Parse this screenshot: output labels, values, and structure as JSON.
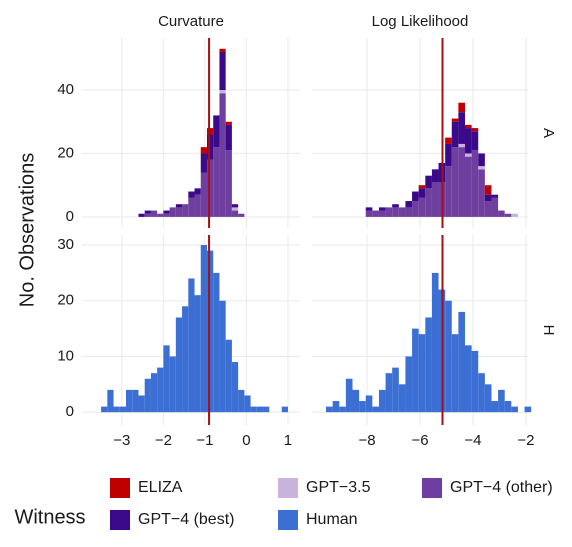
{
  "figure": {
    "ylabel": "No. Observations",
    "legend_title": "Witness"
  },
  "chart_data": [
    {
      "type": "histogram",
      "title": "Curvature",
      "bins": [
        -3.5,
        -3.35,
        -3.2,
        -3.05,
        -2.9,
        -2.75,
        -2.6,
        -2.45,
        -2.3,
        -2.15,
        -2,
        -1.85,
        -1.7,
        -1.55,
        -1.4,
        -1.25,
        -1.1,
        -0.95,
        -0.8,
        -0.65,
        -0.5,
        -0.35,
        -0.2,
        -0.05,
        0.1,
        0.25,
        0.4,
        0.55,
        0.7,
        0.85,
        1.0
      ],
      "series": [
        {
          "name": "ELIZA",
          "color": "#c00000",
          "values": [
            0,
            0,
            0,
            0,
            0,
            0,
            0,
            0,
            0,
            0,
            0,
            0,
            0,
            0,
            0,
            0,
            2,
            2,
            0,
            1,
            1,
            0,
            0,
            0,
            0,
            0,
            0,
            0,
            0,
            0
          ]
        },
        {
          "name": "GPT−4 (best)",
          "color": "#3b0a8a",
          "values": [
            0,
            0,
            0,
            0,
            0,
            0,
            1,
            1,
            0,
            0,
            1,
            0,
            1,
            0,
            2,
            2,
            6,
            8,
            10,
            12,
            8,
            1,
            0,
            0,
            0,
            0,
            0,
            0,
            0,
            0
          ]
        },
        {
          "name": "GPT−3.5",
          "color": "#c9b3dd",
          "values": [
            0,
            0,
            0,
            0,
            0,
            0,
            0,
            0,
            0,
            0,
            0,
            0,
            0,
            0,
            0,
            0,
            0,
            0,
            0,
            1,
            0,
            1,
            0,
            0,
            0,
            0,
            0,
            0,
            0,
            0
          ]
        },
        {
          "name": "GPT−4 (other)",
          "color": "#6f3fa0",
          "values": [
            0,
            0,
            0,
            0,
            0,
            0,
            0,
            1,
            2,
            1,
            1,
            3,
            3,
            4,
            6,
            7,
            14,
            18,
            22,
            39,
            21,
            2,
            1,
            0,
            0,
            0,
            0,
            0,
            0,
            0
          ]
        }
      ],
      "xlim": [
        -3.96,
        1.29
      ],
      "ylim": [
        -3.5,
        56.4
      ],
      "xticks": [
        {
          "value": -3,
          "label": "−3"
        },
        {
          "value": -2,
          "label": "−2"
        },
        {
          "value": -1,
          "label": "−1"
        },
        0,
        1
      ],
      "yticks": [
        0,
        20,
        40
      ],
      "grid": true,
      "vline": {
        "value": -0.9,
        "color": "#a50f15"
      }
    },
    {
      "type": "histogram",
      "title": "Log Likelihood",
      "row_label": "A",
      "bins": [
        -9.8,
        -9.55,
        -9.3,
        -9.05,
        -8.8,
        -8.55,
        -8.3,
        -8.05,
        -7.8,
        -7.55,
        -7.3,
        -7.05,
        -6.8,
        -6.55,
        -6.3,
        -6.05,
        -5.8,
        -5.55,
        -5.3,
        -5.05,
        -4.8,
        -4.55,
        -4.3,
        -4.05,
        -3.8,
        -3.55,
        -3.3,
        -3.05,
        -2.8,
        -2.55,
        -2.3,
        -2.05,
        -1.8
      ],
      "series": [
        {
          "name": "ELIZA",
          "color": "#c00000",
          "values": [
            0,
            0,
            0,
            0,
            0,
            0,
            0,
            0,
            0,
            0,
            0,
            0,
            0,
            0,
            0,
            1,
            0,
            0,
            0,
            2,
            1,
            3,
            1,
            1,
            0,
            3,
            0,
            0,
            0,
            0,
            0,
            0
          ]
        },
        {
          "name": "GPT−4 (best)",
          "color": "#3b0a8a",
          "values": [
            0,
            0,
            0,
            0,
            0,
            0,
            0,
            1,
            0,
            1,
            0,
            1,
            0,
            2,
            3,
            3,
            4,
            4,
            6,
            7,
            8,
            10,
            8,
            6,
            4,
            2,
            1,
            0,
            0,
            0,
            0,
            0
          ]
        },
        {
          "name": "GPT−3.5",
          "color": "#c9b3dd",
          "values": [
            0,
            0,
            0,
            0,
            0,
            0,
            0,
            0,
            0,
            0,
            0,
            0,
            0,
            0,
            0,
            0,
            0,
            0,
            0,
            0,
            0,
            1,
            1,
            0,
            1,
            0,
            0,
            0,
            0,
            1,
            0,
            0
          ]
        },
        {
          "name": "GPT−4 (other)",
          "color": "#6f3fa0",
          "values": [
            0,
            0,
            0,
            0,
            0,
            0,
            0,
            2,
            2,
            2,
            3,
            3,
            3,
            3,
            5,
            6,
            9,
            11,
            11,
            16,
            22,
            22,
            19,
            21,
            15,
            5,
            6,
            2,
            1,
            0,
            0,
            0
          ]
        }
      ],
      "xlim": [
        -10.08,
        -1.92
      ],
      "ylim": [
        -3.5,
        56.4
      ],
      "xticks": [
        {
          "value": -8,
          "label": "−8"
        },
        {
          "value": -6,
          "label": "−6"
        },
        {
          "value": -4,
          "label": "−4"
        },
        {
          "value": -2,
          "label": "−2"
        }
      ],
      "yticks": [
        0,
        20,
        40
      ],
      "grid": true,
      "vline": {
        "value": -5.15,
        "color": "#a50f15"
      }
    },
    {
      "type": "histogram",
      "bins": [
        -3.5,
        -3.35,
        -3.2,
        -3.05,
        -2.9,
        -2.75,
        -2.6,
        -2.45,
        -2.3,
        -2.15,
        -2,
        -1.85,
        -1.7,
        -1.55,
        -1.4,
        -1.25,
        -1.1,
        -0.95,
        -0.8,
        -0.65,
        -0.5,
        -0.35,
        -0.2,
        -0.05,
        0.1,
        0.25,
        0.4,
        0.55,
        0.7,
        0.85,
        1.0
      ],
      "series": [
        {
          "name": "Human",
          "color": "#3b6fd4",
          "values": [
            1,
            4,
            1,
            1,
            4,
            4,
            3,
            6,
            7,
            8,
            12,
            10,
            17,
            19,
            24,
            21,
            30,
            29,
            25,
            20,
            13,
            9,
            4,
            3,
            1,
            1,
            1,
            0,
            0,
            1
          ]
        }
      ],
      "xlim": [
        -3.96,
        1.29
      ],
      "ylim": [
        -2.3,
        31.8
      ],
      "xticks": [
        {
          "value": -3,
          "label": "−3"
        },
        {
          "value": -2,
          "label": "−2"
        },
        {
          "value": -1,
          "label": "−1"
        },
        0,
        1
      ],
      "yticks": [
        0,
        10,
        20,
        30
      ],
      "grid": true,
      "vline": {
        "value": -0.9,
        "color": "#a50f15"
      }
    },
    {
      "type": "histogram",
      "row_label": "H",
      "bins": [
        -9.8,
        -9.55,
        -9.3,
        -9.05,
        -8.8,
        -8.55,
        -8.3,
        -8.05,
        -7.8,
        -7.55,
        -7.3,
        -7.05,
        -6.8,
        -6.55,
        -6.3,
        -6.05,
        -5.8,
        -5.55,
        -5.3,
        -5.05,
        -4.8,
        -4.55,
        -4.3,
        -4.05,
        -3.8,
        -3.55,
        -3.3,
        -3.05,
        -2.8,
        -2.55,
        -2.3,
        -2.05,
        -1.8
      ],
      "series": [
        {
          "name": "Human",
          "color": "#3b6fd4",
          "values": [
            0,
            1,
            2,
            1,
            6,
            4,
            2,
            3,
            1,
            4,
            7,
            8,
            5,
            10,
            15,
            14,
            17,
            25,
            22,
            20,
            14,
            18,
            12,
            11,
            7,
            5,
            2,
            4,
            2,
            1,
            0,
            1
          ]
        }
      ],
      "xlim": [
        -10.08,
        -1.92
      ],
      "ylim": [
        -2.3,
        31.8
      ],
      "xticks": [
        {
          "value": -8,
          "label": "−8"
        },
        {
          "value": -6,
          "label": "−6"
        },
        {
          "value": -4,
          "label": "−4"
        },
        {
          "value": -2,
          "label": "−2"
        }
      ],
      "yticks": [
        0,
        10,
        20,
        30
      ],
      "grid": true,
      "vline": {
        "value": -5.15,
        "color": "#a50f15"
      }
    }
  ]
}
